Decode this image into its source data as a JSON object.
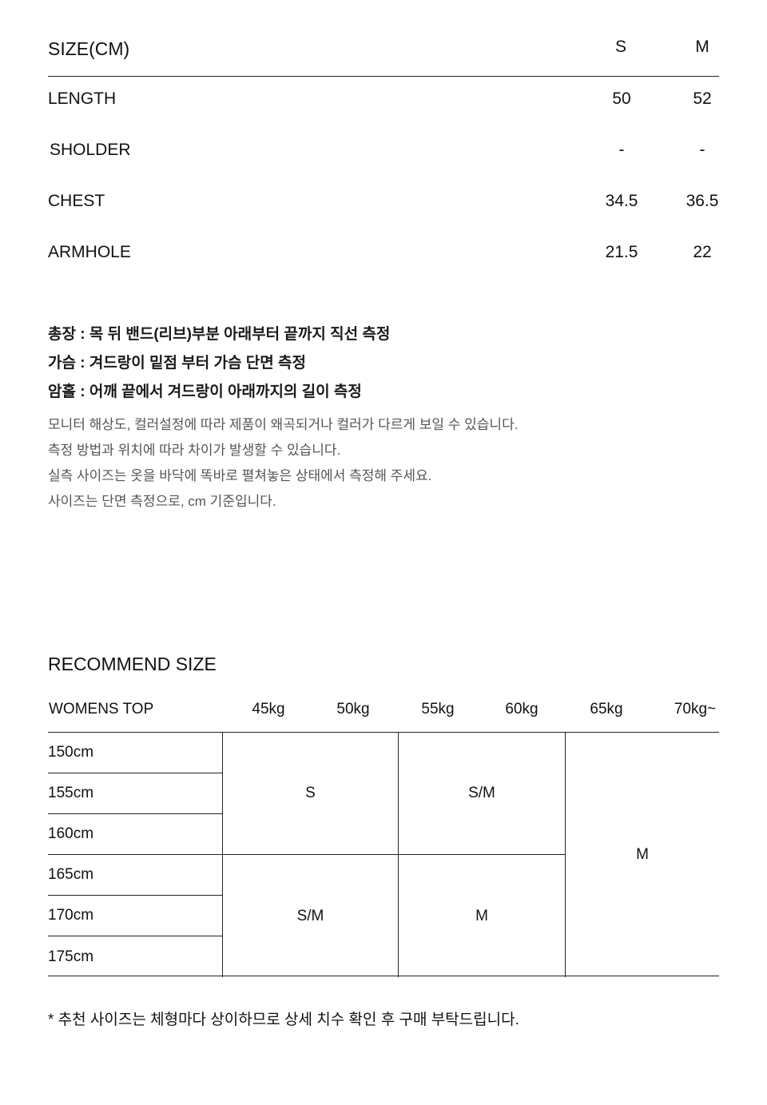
{
  "size_table": {
    "title": "SIZE(CM)",
    "columns": [
      "S",
      "M"
    ],
    "rows": [
      {
        "label": "LENGTH",
        "values": [
          "50",
          "52"
        ]
      },
      {
        "label": "SHOLDER",
        "values": [
          "-",
          "-"
        ]
      },
      {
        "label": "CHEST",
        "values": [
          "34.5",
          "36.5"
        ]
      },
      {
        "label": "ARMHOLE",
        "values": [
          "21.5",
          "22"
        ]
      }
    ]
  },
  "notes": {
    "bold": [
      "총장 : 목 뒤 밴드(리브)부분 아래부터 끝까지 직선 측정",
      "가슴 : 겨드랑이 밑점 부터 가슴 단면 측정",
      "암홀 : 어깨 끝에서 겨드랑이 아래까지의 길이 측정"
    ],
    "regular": [
      "모니터 해상도, 컬러설정에 따라 제품이 왜곡되거나 컬러가 다르게 보일 수 있습니다.",
      "측정 방법과 위치에 따라 차이가 발생할 수 있습니다.",
      "실측 사이즈는 옷을 바닥에 똑바로 펼쳐놓은 상태에서 측정해 주세요.",
      "사이즈는 단면 측정으로, cm 기준입니다."
    ]
  },
  "recommend": {
    "title": "RECOMMEND SIZE",
    "header_label": "WOMENS TOP",
    "weights": [
      "45kg",
      "50kg",
      "55kg",
      "60kg",
      "65kg",
      "70kg~"
    ],
    "heights": [
      "150cm",
      "155cm",
      "160cm",
      "165cm",
      "170cm",
      "175cm"
    ],
    "cells": {
      "a": "S",
      "b": "S/M",
      "c": "M",
      "d": "S/M",
      "e": "M"
    },
    "footnote": "* 추천 사이즈는 체형마다 상이하므로 상세 치수 확인 후 구매 부탁드립니다."
  }
}
